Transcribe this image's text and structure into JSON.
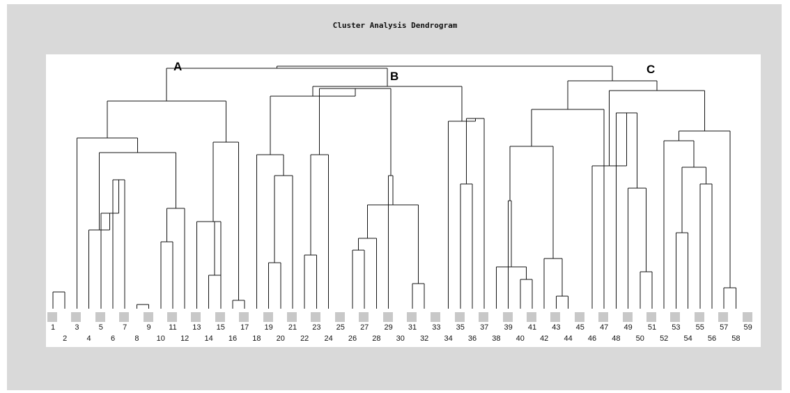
{
  "title": "Cluster Analysis Dendrogram",
  "groups": [
    {
      "name": "A"
    },
    {
      "name": "B"
    },
    {
      "name": "C"
    }
  ],
  "leaves": [
    "1",
    "2",
    "3",
    "4",
    "5",
    "6",
    "7",
    "8",
    "9",
    "10",
    "11",
    "12",
    "13",
    "14",
    "15",
    "16",
    "17",
    "18",
    "19",
    "20",
    "21",
    "22",
    "23",
    "24",
    "25",
    "26",
    "27",
    "28",
    "29",
    "30",
    "31",
    "32",
    "33",
    "34",
    "35",
    "36",
    "37",
    "38",
    "39",
    "40",
    "41",
    "42",
    "43",
    "44",
    "45",
    "46",
    "47",
    "48",
    "49",
    "50",
    "51",
    "52",
    "53",
    "54",
    "55",
    "56",
    "57",
    "58",
    "59"
  ]
}
